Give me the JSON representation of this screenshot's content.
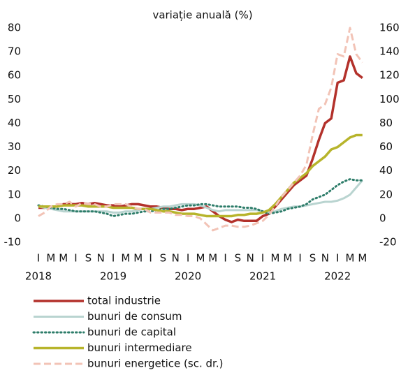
{
  "chart_data": {
    "type": "line",
    "title": "variație anuală (%)",
    "categories": [
      "I",
      null,
      "M",
      null,
      "M",
      null,
      "I",
      null,
      "S",
      null,
      "N",
      null,
      "I",
      null,
      "M",
      null,
      "M",
      null,
      "I",
      null,
      "S",
      null,
      "N",
      null,
      "I",
      null,
      "M",
      null,
      "M",
      null,
      "I",
      null,
      "S",
      null,
      "N",
      null,
      "I",
      null,
      "M",
      null,
      "M",
      null,
      "I",
      null,
      "S",
      null,
      "N",
      null,
      "I",
      null,
      "M",
      null,
      "M"
    ],
    "years": [
      "2018",
      null,
      null,
      null,
      null,
      null,
      null,
      null,
      null,
      null,
      null,
      null,
      "2019",
      null,
      null,
      null,
      null,
      null,
      null,
      null,
      null,
      null,
      null,
      null,
      "2020",
      null,
      null,
      null,
      null,
      null,
      null,
      null,
      null,
      null,
      null,
      null,
      "2021",
      null,
      null,
      null,
      null,
      null,
      null,
      null,
      null,
      null,
      null,
      null,
      "2022",
      null,
      null,
      null,
      null
    ],
    "ylim": [
      -10,
      80
    ],
    "yticks": [
      -10,
      0,
      10,
      20,
      30,
      40,
      50,
      60,
      70,
      80
    ],
    "y2lim": [
      -20,
      160
    ],
    "y2ticks": [
      -20,
      0,
      20,
      40,
      60,
      80,
      100,
      120,
      140,
      160
    ],
    "series": [
      {
        "name": "total industrie",
        "color": "#b3312b",
        "style": "solid",
        "width": 3.5,
        "values": [
          4.5,
          4.5,
          5,
          5,
          6,
          6,
          6,
          6.5,
          6,
          6.5,
          6,
          5.5,
          5.5,
          5,
          5.5,
          6,
          6,
          5.5,
          5,
          5,
          4.5,
          4,
          4,
          3.5,
          4,
          4,
          4.5,
          5,
          3,
          1,
          -0.5,
          -1.5,
          -0.5,
          -1,
          -1,
          -1,
          1,
          2,
          5,
          8,
          11,
          14,
          16,
          18,
          25,
          33,
          40,
          42,
          57,
          58,
          68,
          61,
          59
        ]
      },
      {
        "name": "bunuri de consum",
        "color": "#b9d4d0",
        "style": "solid",
        "width": 3,
        "values": [
          5,
          4.5,
          4,
          3.5,
          3,
          3,
          3,
          3,
          3,
          3,
          3,
          3,
          2.5,
          2.5,
          3,
          3,
          3.5,
          4,
          4,
          4.5,
          5,
          5,
          5.5,
          6,
          6,
          6,
          5.5,
          4.5,
          3.5,
          3,
          3.5,
          3.5,
          3.5,
          3.5,
          3.5,
          3.5,
          3,
          2.5,
          3,
          4,
          4.5,
          5,
          5,
          5.5,
          6,
          6.5,
          7,
          7,
          7.5,
          8.5,
          10,
          13,
          16
        ]
      },
      {
        "name": "bunuri de capital",
        "color": "#2e7d6a",
        "style": "dotted",
        "width": 3,
        "values": [
          5.5,
          5,
          4.5,
          4,
          4,
          3.5,
          3,
          3,
          3,
          3,
          2.5,
          2,
          1,
          1.5,
          2,
          2,
          2.5,
          3,
          3,
          3.5,
          4,
          4,
          4.5,
          5,
          5.5,
          5.5,
          6,
          6,
          5.5,
          5,
          5,
          5,
          5,
          4.5,
          4.5,
          4,
          3,
          2,
          2.5,
          3,
          4,
          4.5,
          5,
          6,
          8,
          9,
          10,
          12,
          14,
          15.5,
          16.5,
          16,
          16
        ]
      },
      {
        "name": "bunuri intermediare",
        "color": "#b7b42b",
        "style": "solid",
        "width": 3.5,
        "values": [
          5,
          5,
          5,
          5,
          5.5,
          5.5,
          5.5,
          5.5,
          5,
          5,
          5,
          5,
          4.5,
          4.5,
          4.5,
          4.5,
          4,
          4,
          4,
          3.5,
          3,
          3,
          2.5,
          2,
          2,
          2,
          1.5,
          1,
          1,
          1,
          1,
          1,
          1.5,
          1.5,
          2,
          2,
          2.5,
          3.5,
          6,
          9,
          12,
          15,
          17,
          19,
          22,
          24,
          26,
          29,
          30,
          32,
          34,
          35,
          35
        ]
      },
      {
        "name": "bunuri energetice (sc. dr.)",
        "color": "#f2c3b6",
        "style": "dashed",
        "width": 3,
        "axis": "y2",
        "values": [
          2,
          5,
          10,
          12,
          12,
          14,
          10,
          13,
          12,
          12,
          10,
          10,
          12,
          12,
          12,
          10,
          8,
          8,
          5,
          5,
          5,
          5,
          3,
          3,
          2,
          2,
          0,
          -5,
          -10,
          -8,
          -6,
          -6,
          -7,
          -7,
          -6,
          -4,
          -2,
          3,
          10,
          18,
          24,
          30,
          36,
          45,
          70,
          92,
          96,
          110,
          138,
          136,
          160,
          138,
          131
        ]
      }
    ]
  }
}
